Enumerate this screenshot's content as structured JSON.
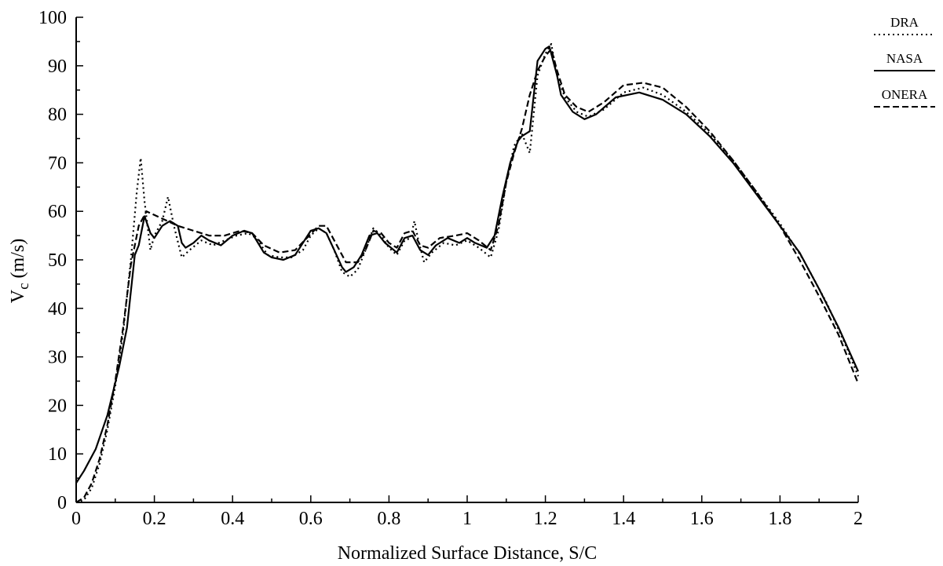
{
  "chart_data": {
    "type": "line",
    "xlabel": "Normalized Surface Distance, S/C",
    "ylabel_main": "V",
    "ylabel_sub": "c",
    "ylabel_unit": " (m/s)",
    "xlim": [
      0,
      2
    ],
    "ylim": [
      0,
      100
    ],
    "x_ticks": [
      0,
      0.2,
      0.4,
      0.6,
      0.8,
      1,
      1.2,
      1.4,
      1.6,
      1.8,
      2
    ],
    "x_tick_labels": [
      "0",
      "0.2",
      "0.4",
      "0.6",
      "0.8",
      "1",
      "1.2",
      "1.4",
      "1.6",
      "1.8",
      "2"
    ],
    "y_ticks": [
      0,
      10,
      20,
      30,
      40,
      50,
      60,
      70,
      80,
      90,
      100
    ],
    "y_tick_labels": [
      "0",
      "10",
      "20",
      "30",
      "40",
      "50",
      "60",
      "70",
      "80",
      "90",
      "100"
    ],
    "grid": false,
    "legend_position": "top-right",
    "series": [
      {
        "name": "DRA",
        "line_style": "dotted",
        "points": [
          [
            0.0,
            0.0
          ],
          [
            0.02,
            0.5
          ],
          [
            0.04,
            3.0
          ],
          [
            0.06,
            8.0
          ],
          [
            0.08,
            15.0
          ],
          [
            0.1,
            24.0
          ],
          [
            0.12,
            35.0
          ],
          [
            0.14,
            50.0
          ],
          [
            0.155,
            64.0
          ],
          [
            0.165,
            71.0
          ],
          [
            0.175,
            62.0
          ],
          [
            0.19,
            52.0
          ],
          [
            0.2,
            55.0
          ],
          [
            0.22,
            58.0
          ],
          [
            0.235,
            63.0
          ],
          [
            0.25,
            57.0
          ],
          [
            0.27,
            50.5
          ],
          [
            0.29,
            52.0
          ],
          [
            0.32,
            54.0
          ],
          [
            0.35,
            53.0
          ],
          [
            0.38,
            54.0
          ],
          [
            0.41,
            55.0
          ],
          [
            0.44,
            55.5
          ],
          [
            0.46,
            54.5
          ],
          [
            0.49,
            51.0
          ],
          [
            0.52,
            50.5
          ],
          [
            0.55,
            50.5
          ],
          [
            0.58,
            52.0
          ],
          [
            0.6,
            55.0
          ],
          [
            0.62,
            56.5
          ],
          [
            0.64,
            55.5
          ],
          [
            0.66,
            52.0
          ],
          [
            0.68,
            47.5
          ],
          [
            0.7,
            46.5
          ],
          [
            0.72,
            48.0
          ],
          [
            0.74,
            52.0
          ],
          [
            0.76,
            56.5
          ],
          [
            0.78,
            55.0
          ],
          [
            0.8,
            52.5
          ],
          [
            0.82,
            51.0
          ],
          [
            0.84,
            54.0
          ],
          [
            0.855,
            54.5
          ],
          [
            0.865,
            58.0
          ],
          [
            0.875,
            54.0
          ],
          [
            0.89,
            49.5
          ],
          [
            0.91,
            51.5
          ],
          [
            0.94,
            53.5
          ],
          [
            0.97,
            53.0
          ],
          [
            1.0,
            54.0
          ],
          [
            1.03,
            52.5
          ],
          [
            1.06,
            50.5
          ],
          [
            1.08,
            56.0
          ],
          [
            1.1,
            66.0
          ],
          [
            1.12,
            73.5
          ],
          [
            1.14,
            76.0
          ],
          [
            1.16,
            72.0
          ],
          [
            1.18,
            88.0
          ],
          [
            1.2,
            92.5
          ],
          [
            1.215,
            94.5
          ],
          [
            1.23,
            88.0
          ],
          [
            1.25,
            83.5
          ],
          [
            1.28,
            80.5
          ],
          [
            1.31,
            79.5
          ],
          [
            1.35,
            81.0
          ],
          [
            1.4,
            84.5
          ],
          [
            1.45,
            85.5
          ],
          [
            1.5,
            84.0
          ],
          [
            1.56,
            80.5
          ],
          [
            1.62,
            76.0
          ],
          [
            1.68,
            70.5
          ],
          [
            1.74,
            64.0
          ],
          [
            1.8,
            57.5
          ],
          [
            1.86,
            50.0
          ],
          [
            1.92,
            41.0
          ],
          [
            1.97,
            32.0
          ],
          [
            2.0,
            26.0
          ]
        ]
      },
      {
        "name": "NASA",
        "line_style": "solid",
        "points": [
          [
            0.0,
            4.0
          ],
          [
            0.02,
            6.5
          ],
          [
            0.05,
            11.0
          ],
          [
            0.08,
            18.0
          ],
          [
            0.11,
            28.0
          ],
          [
            0.13,
            36.0
          ],
          [
            0.15,
            51.0
          ],
          [
            0.16,
            53.0
          ],
          [
            0.175,
            59.0
          ],
          [
            0.19,
            55.5
          ],
          [
            0.2,
            54.5
          ],
          [
            0.22,
            57.0
          ],
          [
            0.24,
            58.0
          ],
          [
            0.26,
            57.0
          ],
          [
            0.27,
            53.5
          ],
          [
            0.28,
            52.5
          ],
          [
            0.3,
            53.5
          ],
          [
            0.32,
            55.0
          ],
          [
            0.34,
            54.0
          ],
          [
            0.37,
            53.0
          ],
          [
            0.4,
            55.0
          ],
          [
            0.43,
            56.0
          ],
          [
            0.45,
            55.5
          ],
          [
            0.48,
            51.5
          ],
          [
            0.5,
            50.5
          ],
          [
            0.53,
            50.0
          ],
          [
            0.56,
            51.0
          ],
          [
            0.58,
            53.5
          ],
          [
            0.6,
            56.0
          ],
          [
            0.62,
            56.5
          ],
          [
            0.64,
            55.5
          ],
          [
            0.66,
            52.0
          ],
          [
            0.68,
            48.5
          ],
          [
            0.69,
            47.5
          ],
          [
            0.71,
            48.5
          ],
          [
            0.73,
            51.0
          ],
          [
            0.75,
            55.0
          ],
          [
            0.77,
            55.5
          ],
          [
            0.79,
            53.5
          ],
          [
            0.82,
            51.5
          ],
          [
            0.84,
            54.5
          ],
          [
            0.86,
            55.0
          ],
          [
            0.88,
            52.0
          ],
          [
            0.9,
            51.0
          ],
          [
            0.92,
            53.0
          ],
          [
            0.95,
            54.5
          ],
          [
            0.98,
            53.5
          ],
          [
            1.0,
            54.5
          ],
          [
            1.02,
            53.5
          ],
          [
            1.05,
            52.5
          ],
          [
            1.07,
            55.0
          ],
          [
            1.09,
            63.0
          ],
          [
            1.11,
            70.0
          ],
          [
            1.13,
            74.5
          ],
          [
            1.14,
            75.5
          ],
          [
            1.16,
            76.5
          ],
          [
            1.18,
            91.0
          ],
          [
            1.2,
            93.5
          ],
          [
            1.21,
            94.0
          ],
          [
            1.23,
            88.0
          ],
          [
            1.24,
            84.0
          ],
          [
            1.27,
            80.5
          ],
          [
            1.3,
            79.0
          ],
          [
            1.33,
            80.0
          ],
          [
            1.38,
            83.5
          ],
          [
            1.44,
            84.5
          ],
          [
            1.5,
            83.0
          ],
          [
            1.56,
            80.0
          ],
          [
            1.62,
            75.5
          ],
          [
            1.68,
            70.0
          ],
          [
            1.74,
            63.5
          ],
          [
            1.8,
            57.0
          ],
          [
            1.85,
            51.5
          ],
          [
            1.9,
            44.0
          ],
          [
            1.95,
            36.0
          ],
          [
            2.0,
            27.0
          ]
        ]
      },
      {
        "name": "ONERA",
        "line_style": "dashed",
        "points": [
          [
            0.0,
            0.0
          ],
          [
            0.02,
            1.0
          ],
          [
            0.04,
            4.0
          ],
          [
            0.06,
            9.0
          ],
          [
            0.08,
            16.0
          ],
          [
            0.1,
            25.0
          ],
          [
            0.12,
            36.0
          ],
          [
            0.14,
            49.0
          ],
          [
            0.16,
            57.0
          ],
          [
            0.18,
            60.0
          ],
          [
            0.22,
            58.5
          ],
          [
            0.26,
            57.0
          ],
          [
            0.3,
            56.0
          ],
          [
            0.34,
            55.0
          ],
          [
            0.38,
            55.0
          ],
          [
            0.42,
            56.0
          ],
          [
            0.45,
            55.5
          ],
          [
            0.48,
            53.0
          ],
          [
            0.52,
            51.5
          ],
          [
            0.56,
            52.0
          ],
          [
            0.59,
            54.5
          ],
          [
            0.62,
            57.0
          ],
          [
            0.64,
            57.0
          ],
          [
            0.66,
            54.0
          ],
          [
            0.69,
            49.5
          ],
          [
            0.72,
            49.5
          ],
          [
            0.74,
            52.0
          ],
          [
            0.76,
            56.0
          ],
          [
            0.78,
            55.5
          ],
          [
            0.8,
            53.5
          ],
          [
            0.82,
            52.5
          ],
          [
            0.84,
            55.5
          ],
          [
            0.86,
            56.0
          ],
          [
            0.88,
            53.0
          ],
          [
            0.9,
            52.5
          ],
          [
            0.93,
            54.5
          ],
          [
            0.97,
            55.0
          ],
          [
            1.0,
            55.5
          ],
          [
            1.03,
            54.0
          ],
          [
            1.06,
            52.0
          ],
          [
            1.08,
            57.0
          ],
          [
            1.1,
            66.0
          ],
          [
            1.12,
            72.0
          ],
          [
            1.14,
            77.0
          ],
          [
            1.16,
            84.0
          ],
          [
            1.18,
            89.0
          ],
          [
            1.2,
            92.0
          ],
          [
            1.215,
            93.5
          ],
          [
            1.23,
            89.0
          ],
          [
            1.25,
            84.0
          ],
          [
            1.28,
            81.5
          ],
          [
            1.31,
            80.5
          ],
          [
            1.35,
            82.5
          ],
          [
            1.4,
            86.0
          ],
          [
            1.45,
            86.5
          ],
          [
            1.5,
            85.5
          ],
          [
            1.56,
            81.5
          ],
          [
            1.62,
            76.5
          ],
          [
            1.68,
            70.5
          ],
          [
            1.74,
            64.0
          ],
          [
            1.8,
            57.0
          ],
          [
            1.85,
            50.0
          ],
          [
            1.9,
            42.5
          ],
          [
            1.95,
            34.5
          ],
          [
            2.0,
            24.5
          ]
        ]
      }
    ]
  }
}
